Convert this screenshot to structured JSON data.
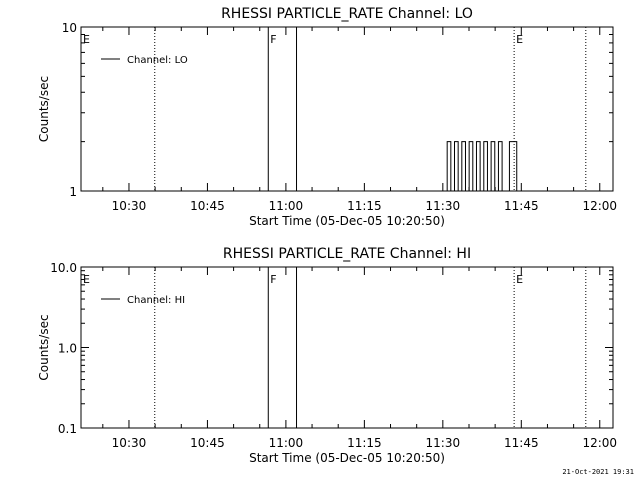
{
  "chart_data": [
    {
      "type": "line",
      "title": "RHESSI PARTICLE_RATE Channel: LO",
      "xlabel": "Start Time (05-Dec-05 10:20:50)",
      "ylabel": "Counts/sec",
      "x_unit": "minutes after 10:20:50",
      "xlim": [
        0,
        101.7
      ],
      "ylim": [
        1,
        10
      ],
      "yscale": "log",
      "x_ticks": [
        {
          "label": "10:30",
          "t": 9.17
        },
        {
          "label": "10:45",
          "t": 24.17
        },
        {
          "label": "11:00",
          "t": 39.17
        },
        {
          "label": "11:15",
          "t": 54.17
        },
        {
          "label": "11:30",
          "t": 69.17
        },
        {
          "label": "11:45",
          "t": 84.17
        },
        {
          "label": "12:00",
          "t": 99.17
        }
      ],
      "y_ticks": [
        {
          "label": "1",
          "v": 1
        },
        {
          "label": "10",
          "v": 10
        }
      ],
      "grid": false,
      "legend": {
        "position": "top-left",
        "entries": [
          "Channel: LO"
        ]
      },
      "markers": [
        {
          "label": "E",
          "t": 0.0,
          "style": "label-only"
        },
        {
          "label": "F",
          "t": 35.8,
          "style": "solid"
        },
        {
          "label": "",
          "t": 41.2,
          "style": "solid"
        },
        {
          "label": "",
          "t": 14.1,
          "style": "dotted"
        },
        {
          "label": "E",
          "t": 82.8,
          "style": "dotted"
        },
        {
          "label": "",
          "t": 96.5,
          "style": "dotted"
        }
      ],
      "series": [
        {
          "name": "Channel: LO",
          "x": [
            70.0,
            70.7,
            71.4,
            72.1,
            72.8,
            73.5,
            74.2,
            74.9,
            75.6,
            76.3,
            77.0,
            77.7,
            78.4,
            79.1,
            79.8,
            80.5,
            81.2,
            81.9,
            82.6,
            83.3
          ],
          "y": [
            2,
            1,
            2,
            1,
            2,
            1,
            2,
            1,
            2,
            1,
            2,
            1,
            2,
            1,
            2,
            1,
            1,
            2,
            2,
            1
          ]
        }
      ]
    },
    {
      "type": "line",
      "title": "RHESSI PARTICLE_RATE Channel: HI",
      "xlabel": "Start Time (05-Dec-05 10:20:50)",
      "ylabel": "Counts/sec",
      "x_unit": "minutes after 10:20:50",
      "xlim": [
        0,
        101.7
      ],
      "ylim": [
        0.1,
        10
      ],
      "yscale": "log",
      "x_ticks": [
        {
          "label": "10:30",
          "t": 9.17
        },
        {
          "label": "10:45",
          "t": 24.17
        },
        {
          "label": "11:00",
          "t": 39.17
        },
        {
          "label": "11:15",
          "t": 54.17
        },
        {
          "label": "11:30",
          "t": 69.17
        },
        {
          "label": "11:45",
          "t": 84.17
        },
        {
          "label": "12:00",
          "t": 99.17
        }
      ],
      "y_ticks": [
        {
          "label": "0.1",
          "v": 0.1
        },
        {
          "label": "1.0",
          "v": 1
        },
        {
          "label": "10.0",
          "v": 10
        }
      ],
      "grid": false,
      "legend": {
        "position": "top-left",
        "entries": [
          "Channel: HI"
        ]
      },
      "markers": [
        {
          "label": "E",
          "t": 0.0,
          "style": "label-only"
        },
        {
          "label": "F",
          "t": 35.8,
          "style": "solid"
        },
        {
          "label": "",
          "t": 41.2,
          "style": "solid"
        },
        {
          "label": "",
          "t": 14.1,
          "style": "dotted"
        },
        {
          "label": "E",
          "t": 82.8,
          "style": "dotted"
        },
        {
          "label": "",
          "t": 96.5,
          "style": "dotted"
        }
      ],
      "series": [
        {
          "name": "Channel: HI",
          "x": [],
          "y": []
        }
      ]
    }
  ],
  "footer": {
    "timestamp": "21-Oct-2021 19:31"
  }
}
